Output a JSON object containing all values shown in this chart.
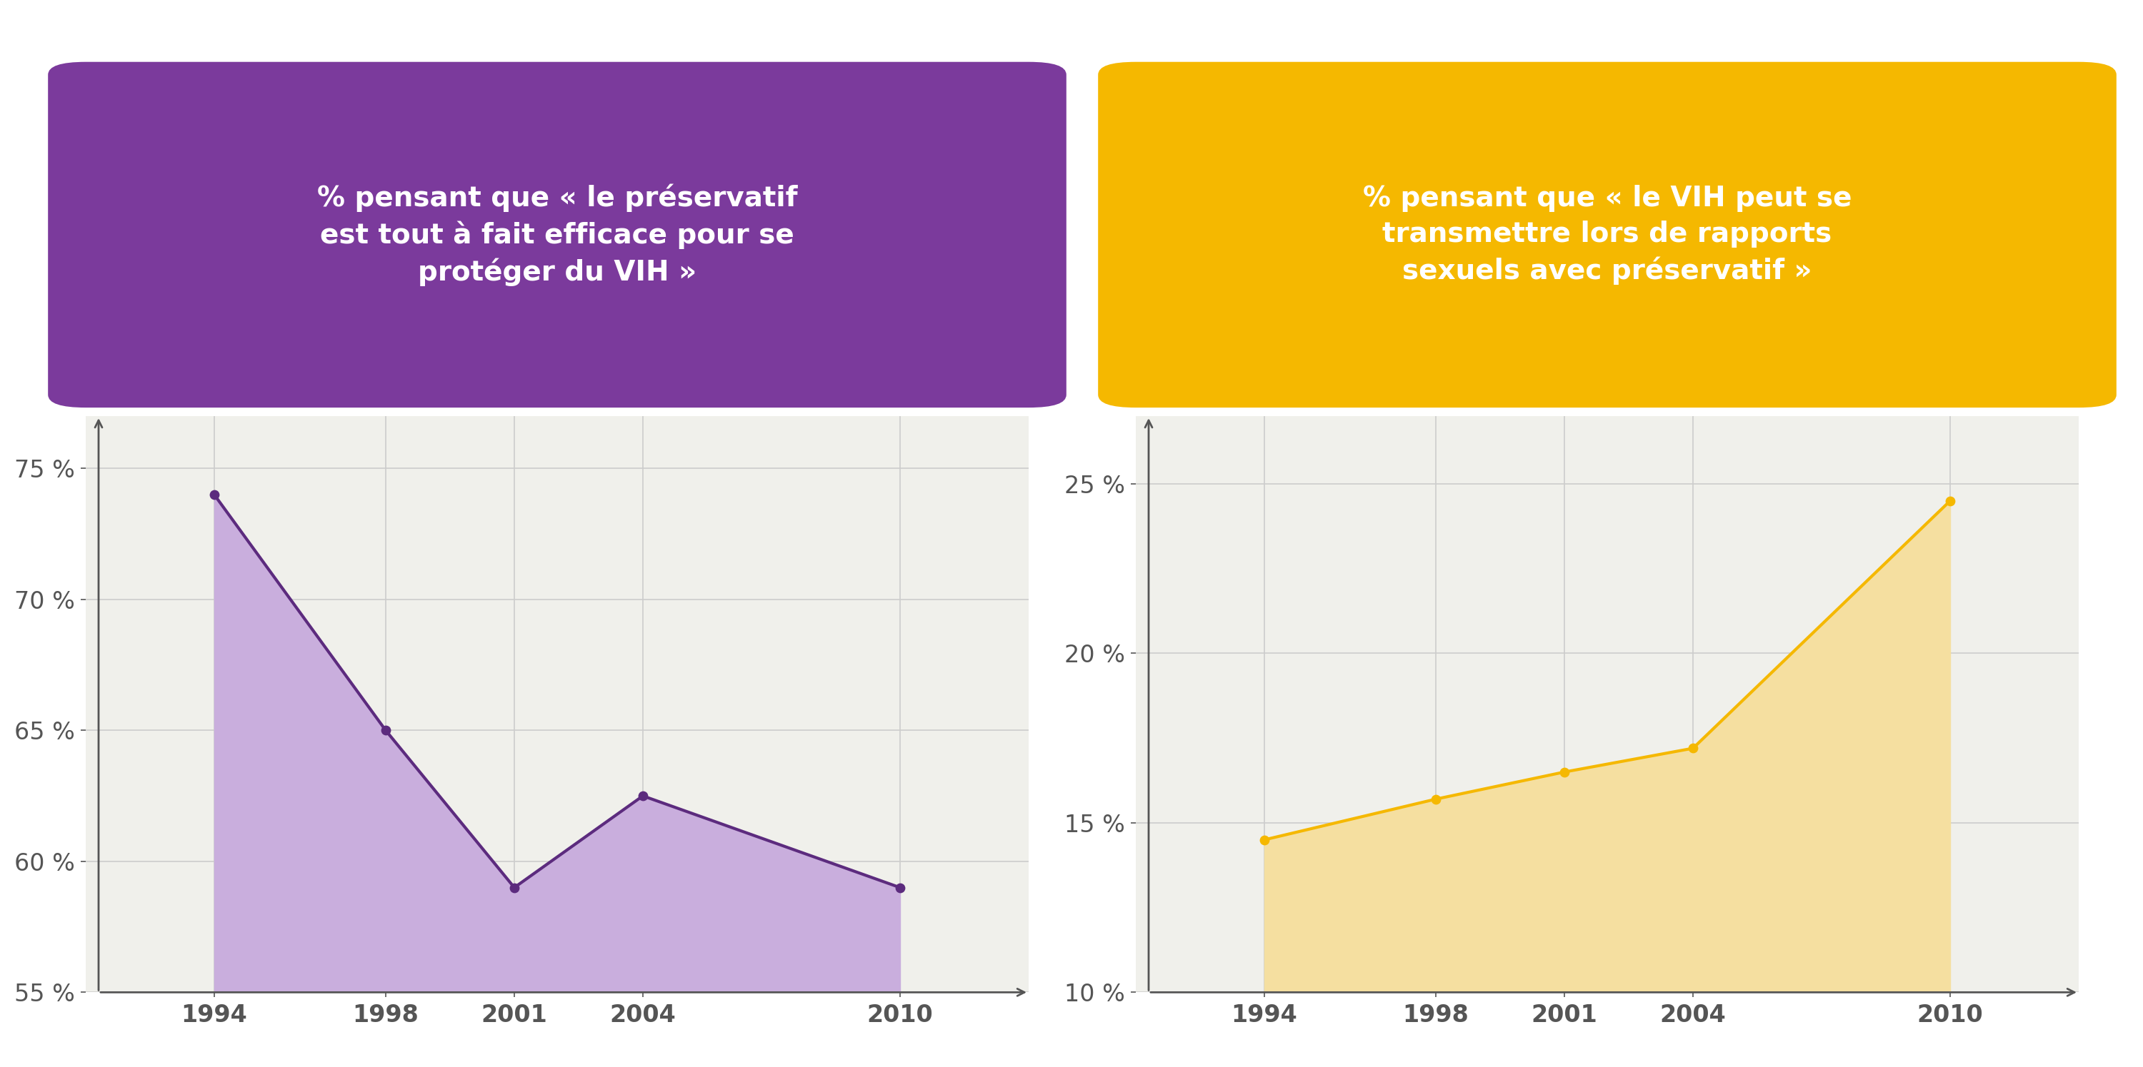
{
  "left_title": "% pensant que « le préservatif\nest tout à fait efficace pour se\nprotéger du VIH »",
  "right_title": "% pensant que « le VIH peut se\ntransmettre lors de rapports\nsexuels avec préservatif »",
  "left_box_color": "#7b3a9c",
  "right_box_color": "#f5b800",
  "left_line_color": "#5c2b7e",
  "right_line_color": "#f5b800",
  "left_fill_color": "#c9aedd",
  "right_fill_color": "#f5dfa0",
  "bg_color": "#f0f0eb",
  "fig_bg": "#ffffff",
  "grid_color": "#cccccc",
  "x_values": [
    1994,
    1998,
    2001,
    2004,
    2010
  ],
  "left_y_values": [
    74,
    65,
    59,
    62.5,
    59
  ],
  "right_y_values": [
    14.5,
    15.7,
    16.5,
    17.2,
    24.5
  ],
  "left_ylim": [
    55,
    77
  ],
  "right_ylim": [
    10,
    27
  ],
  "left_yticks": [
    55,
    60,
    65,
    70,
    75
  ],
  "right_yticks": [
    10,
    15,
    20,
    25
  ],
  "title_text_color": "#ffffff",
  "axis_color": "#555555",
  "tick_label_color": "#555555",
  "line_width": 3.0,
  "dot_size": 80
}
